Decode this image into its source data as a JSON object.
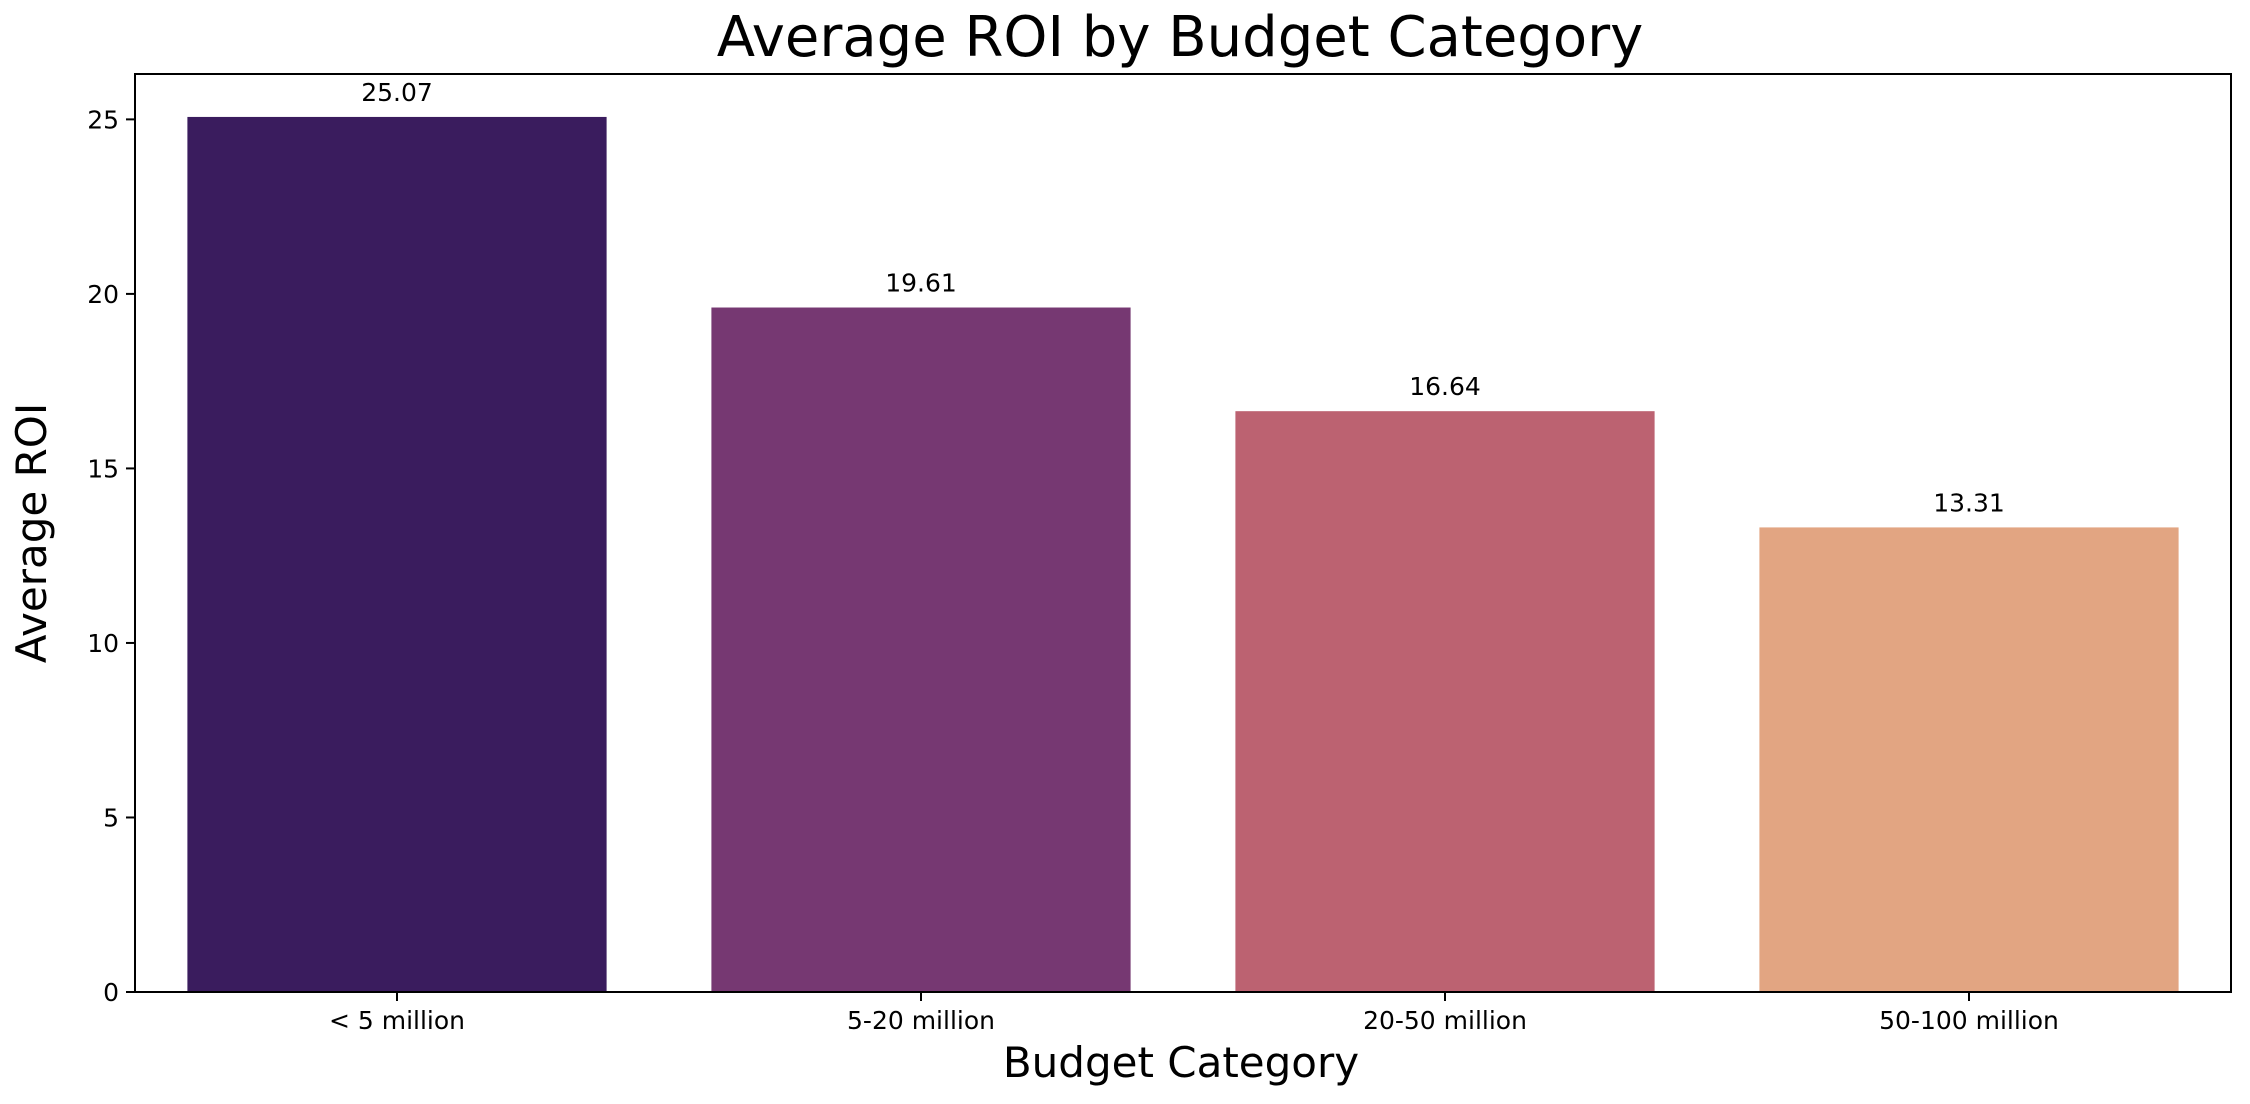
{
  "chart_data": {
    "type": "bar",
    "title": "Average ROI by Budget Category",
    "xlabel": "Budget Category",
    "ylabel": "Average ROI",
    "categories": [
      "< 5 million",
      "5-20 million",
      "20-50 million",
      "50-100 million"
    ],
    "values": [
      25.07,
      19.61,
      16.64,
      13.31
    ],
    "data_labels": [
      "25.07",
      "19.61",
      "16.64",
      "13.31"
    ],
    "colors": [
      "#3a1c5e",
      "#763872",
      "#bc6271",
      "#e2a582"
    ],
    "ylim": [
      0,
      26.3
    ],
    "yticks": [
      0,
      5,
      10,
      15,
      20,
      25
    ],
    "ytick_labels": [
      "0",
      "5",
      "10",
      "15",
      "20",
      "25"
    ],
    "grid": false,
    "legend": "none"
  }
}
